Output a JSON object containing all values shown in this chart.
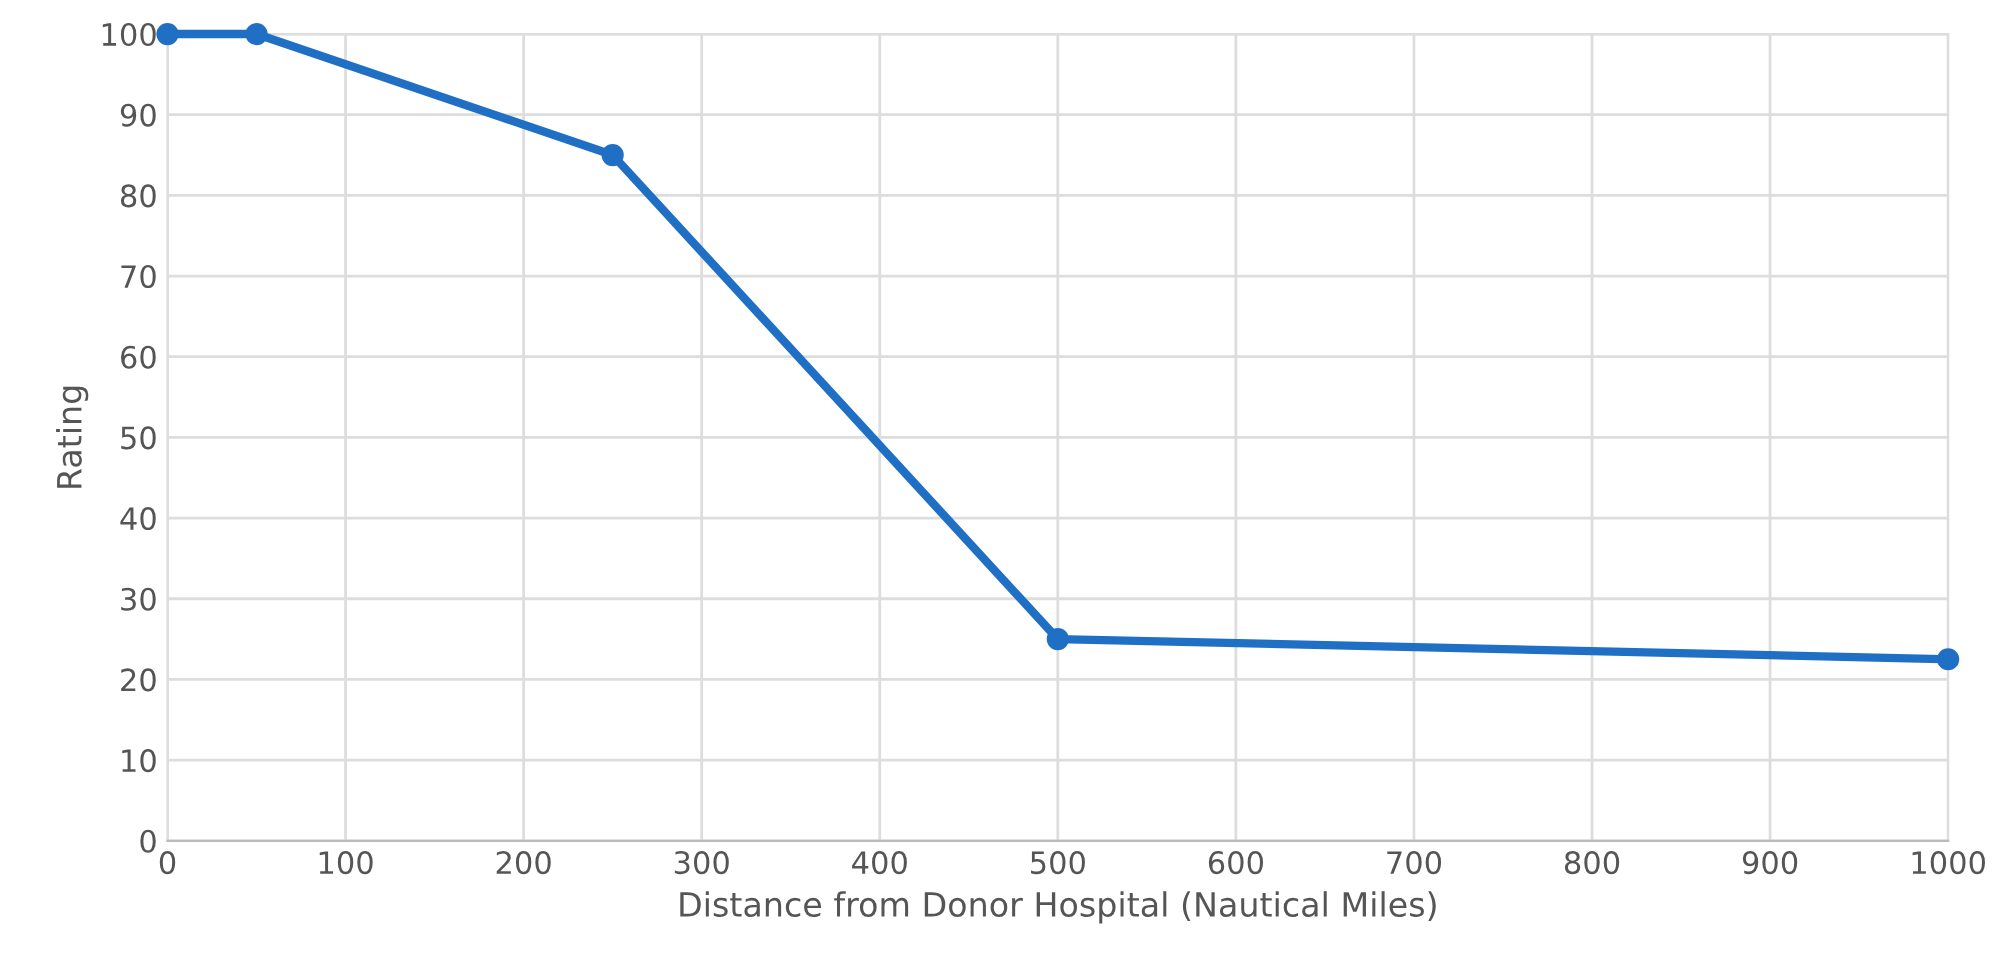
{
  "chart_data": {
    "type": "line",
    "xlabel": "Distance from Donor Hospital (Nautical Miles)",
    "ylabel": "Rating",
    "x": [
      0,
      50,
      250,
      500,
      1000
    ],
    "series": [
      {
        "color": "#1f6fc5",
        "values": [
          100,
          100,
          85,
          25,
          22.5
        ]
      }
    ],
    "xlim": [
      0,
      1000
    ],
    "xticks": [
      0,
      100,
      200,
      300,
      400,
      500,
      600,
      700,
      800,
      900,
      1000
    ],
    "ylim": [
      0,
      100
    ],
    "yticks": [
      0,
      10,
      20,
      30,
      40,
      50,
      60,
      70,
      80,
      90,
      100
    ],
    "grid": true,
    "marker": "circle",
    "line_style": "solid"
  }
}
